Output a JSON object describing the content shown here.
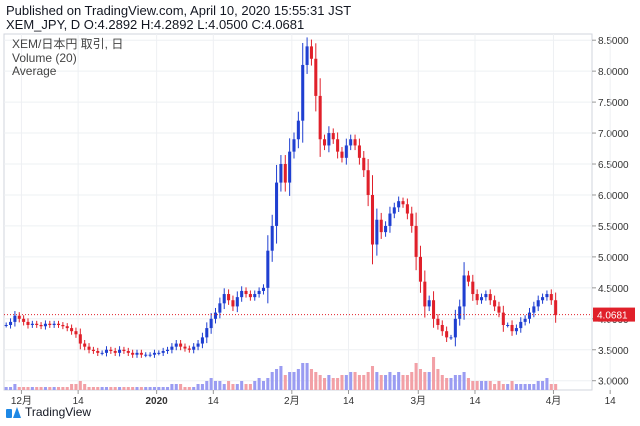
{
  "header": {
    "published": "Published on TradingView.com, April 10, 2020 15:55:31 JST",
    "ohlc": "XEM_JPY, D O:4.2892 H:4.2892 L:4.0500 C:4.0681"
  },
  "legend": {
    "symbol": "XEM/日本円 取引, 日",
    "volume": "Volume (20)",
    "average": "Average"
  },
  "footer": {
    "brand": "TradingView"
  },
  "colors": {
    "up": "#1f3fd1",
    "down": "#e0202a",
    "vol_up": "#9a9cf2",
    "vol_down": "#f2a0a6",
    "last": "#e0202a"
  },
  "chart_data": {
    "type": "candlestick",
    "title": "XEM/日本円 取引, 日",
    "ylim": [
      2.85,
      8.6
    ],
    "y_ticks": [
      3.0,
      3.5,
      4.0,
      4.5,
      5.0,
      5.5,
      6.0,
      6.5,
      7.0,
      7.5,
      8.0,
      8.5
    ],
    "y_tick_labels": [
      "3.0000",
      "3.5000",
      "4.0000",
      "4.5000",
      "5.0000",
      "5.5000",
      "6.0000",
      "6.5000",
      "7.0000",
      "7.5000",
      "8.0000",
      "8.5000"
    ],
    "x_ticks": [
      {
        "label": "12月",
        "day": 4
      },
      {
        "label": "14",
        "day": 17
      },
      {
        "label": "2020",
        "day": 35
      },
      {
        "label": "14",
        "day": 48
      },
      {
        "label": "2月",
        "day": 66
      },
      {
        "label": "14",
        "day": 79
      },
      {
        "label": "3月",
        "day": 95
      },
      {
        "label": "14",
        "day": 108
      },
      {
        "label": "4月",
        "day": 126
      },
      {
        "label": "14",
        "day": 139
      }
    ],
    "n_days": 133,
    "last_price": 4.0681,
    "last_price_label": "4.0681",
    "close": [
      3.9,
      3.95,
      4.05,
      4.0,
      3.95,
      3.9,
      3.92,
      3.9,
      3.88,
      3.92,
      3.9,
      3.92,
      3.9,
      3.88,
      3.85,
      3.8,
      3.75,
      3.6,
      3.55,
      3.5,
      3.48,
      3.45,
      3.45,
      3.5,
      3.48,
      3.45,
      3.5,
      3.48,
      3.45,
      3.42,
      3.45,
      3.42,
      3.42,
      3.42,
      3.45,
      3.45,
      3.48,
      3.5,
      3.55,
      3.6,
      3.55,
      3.52,
      3.5,
      3.55,
      3.6,
      3.7,
      3.85,
      4.0,
      4.1,
      4.25,
      4.4,
      4.3,
      4.2,
      4.35,
      4.45,
      4.4,
      4.35,
      4.4,
      4.45,
      4.5,
      5.1,
      5.5,
      6.2,
      6.5,
      6.2,
      6.7,
      6.9,
      7.2,
      8.1,
      8.4,
      8.2,
      7.6,
      6.9,
      6.8,
      7.0,
      6.9,
      6.7,
      6.6,
      6.8,
      6.9,
      6.8,
      6.6,
      6.4,
      6.0,
      5.2,
      5.6,
      5.4,
      5.5,
      5.7,
      5.8,
      5.9,
      5.85,
      5.7,
      5.5,
      5.0,
      4.6,
      4.2,
      4.3,
      4.0,
      3.9,
      3.8,
      3.7,
      3.7,
      4.0,
      4.2,
      4.7,
      4.6,
      4.4,
      4.3,
      4.35,
      4.4,
      4.3,
      4.2,
      4.1,
      3.9,
      3.9,
      3.8,
      3.85,
      3.95,
      4.0,
      4.1,
      4.2,
      4.3,
      4.35,
      4.4,
      4.3,
      4.06
    ],
    "volume": [
      1,
      1,
      2,
      1,
      1,
      1,
      1,
      1,
      1,
      1,
      1,
      1,
      1,
      1,
      1,
      2,
      2,
      3,
      2,
      1,
      1,
      1,
      1,
      1,
      1,
      1,
      1,
      1,
      1,
      1,
      1,
      1,
      1,
      1,
      1,
      1,
      1,
      1,
      2,
      2,
      2,
      1,
      1,
      1,
      2,
      2,
      3,
      4,
      3,
      3,
      2,
      3,
      2,
      2,
      3,
      2,
      2,
      3,
      4,
      3,
      4,
      6,
      7,
      8,
      5,
      6,
      6,
      7,
      9,
      9,
      7,
      6,
      5,
      4,
      5,
      4,
      4,
      5,
      5,
      6,
      6,
      5,
      5,
      6,
      8,
      6,
      5,
      5,
      6,
      5,
      6,
      5,
      5,
      6,
      9,
      7,
      6,
      6,
      11,
      7,
      5,
      4,
      4,
      5,
      5,
      6,
      4,
      3,
      3,
      3,
      3,
      3,
      2,
      3,
      2,
      2,
      3,
      2,
      2,
      2,
      2,
      2,
      3,
      3,
      4,
      2,
      2
    ],
    "volume_scale_max": 20
  }
}
